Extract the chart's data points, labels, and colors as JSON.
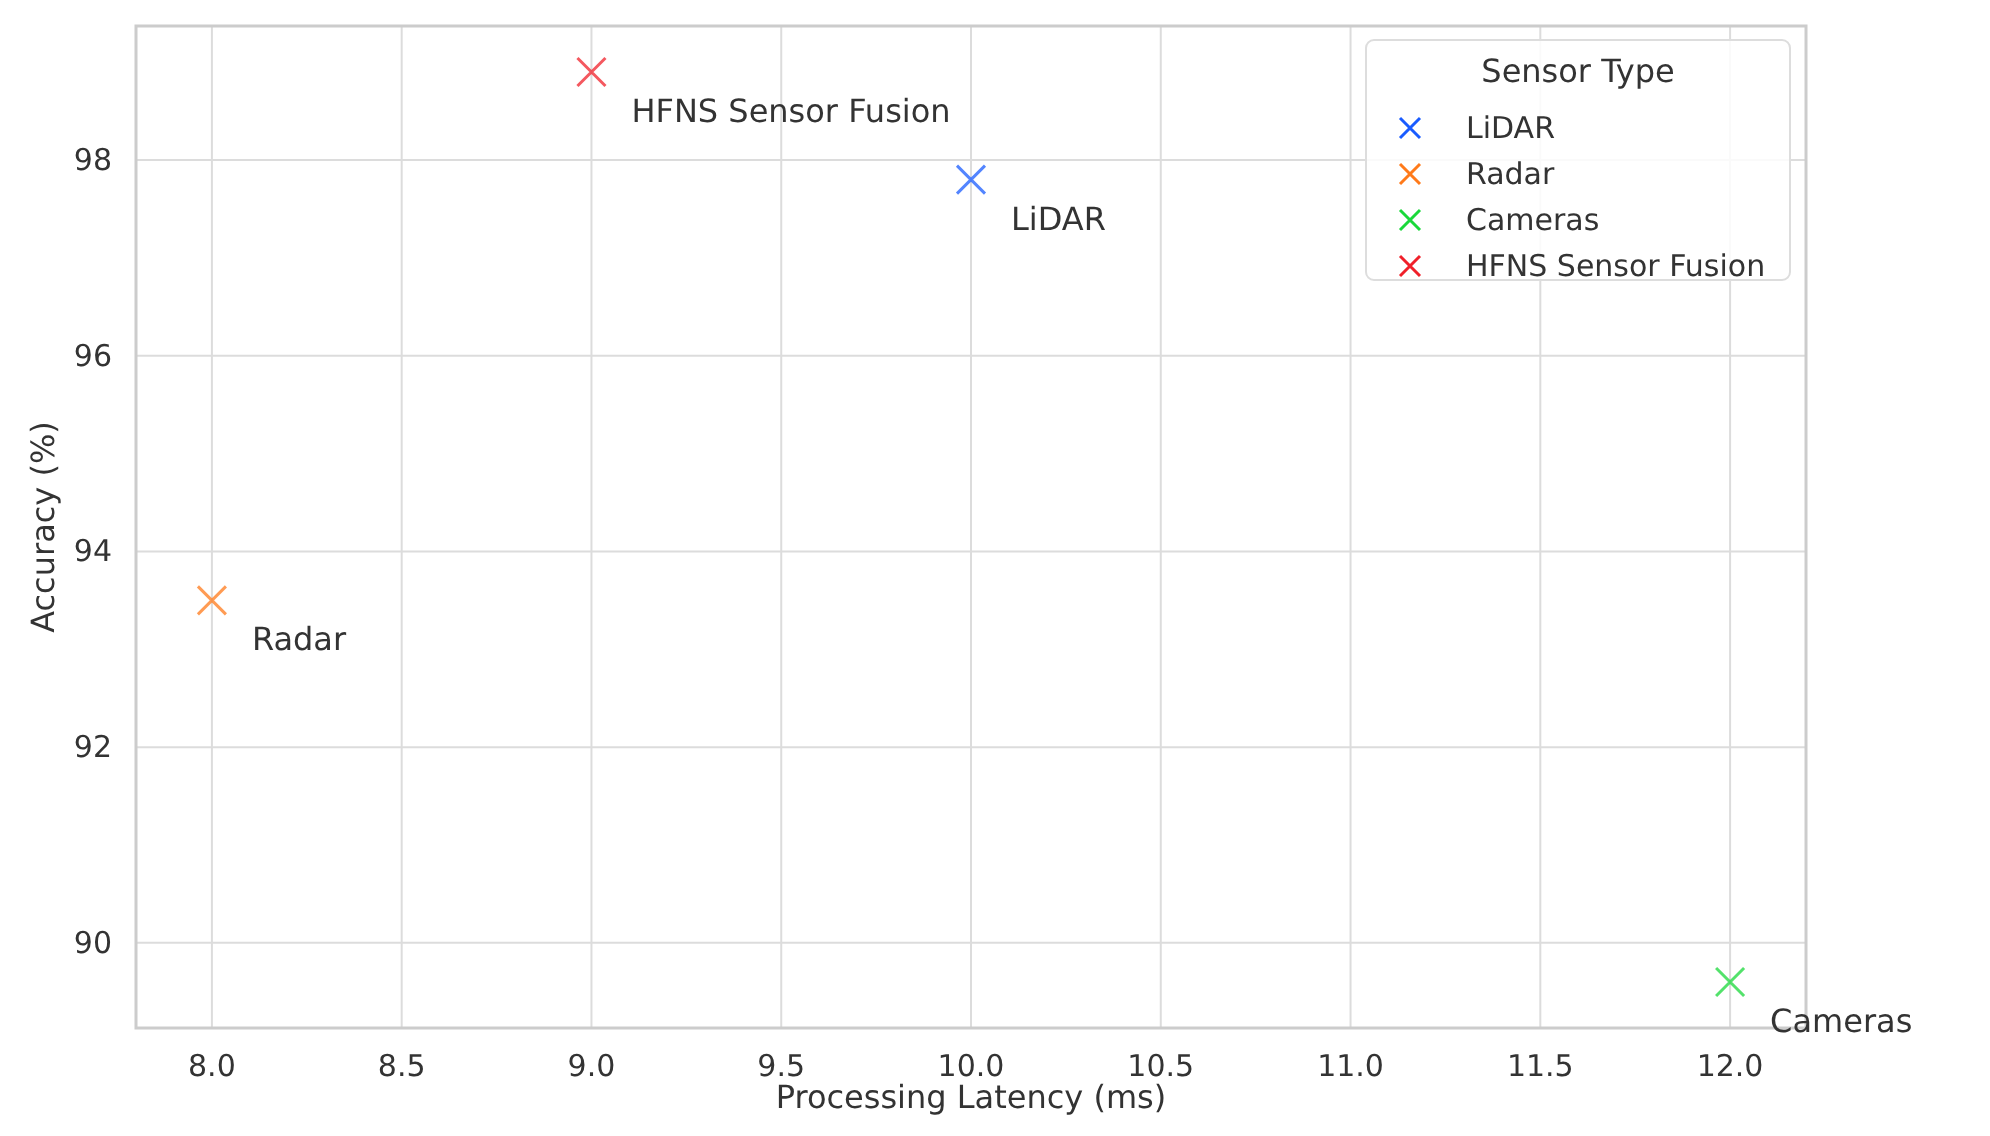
{
  "chart_data": {
    "type": "scatter",
    "xlabel": "Processing Latency (ms)",
    "ylabel": "Accuracy (%)",
    "legend_title": "Sensor Type",
    "legend": "top right",
    "grid": true,
    "marker": "cross",
    "xlim": [
      7.8,
      12.2
    ],
    "xticks": [
      {
        "value": 8,
        "label": "8.0"
      },
      {
        "value": 8.5,
        "label": "8.5"
      },
      {
        "value": 9,
        "label": "9.0"
      },
      {
        "value": 9.5,
        "label": "9.5"
      },
      {
        "value": 10,
        "label": "10.0"
      },
      {
        "value": 10.5,
        "label": "10.5"
      },
      {
        "value": 11,
        "label": "11.0"
      },
      {
        "value": 11.5,
        "label": "11.5"
      },
      {
        "value": 12,
        "label": "12.0"
      }
    ],
    "ylim": [
      89.13,
      99.37
    ],
    "yticks": [
      90,
      92,
      94,
      96,
      98
    ],
    "series": [
      {
        "name": "LiDAR",
        "color": "#1a5cff",
        "x": [
          10.0
        ],
        "values": [
          97.8
        ]
      },
      {
        "name": "Radar",
        "color": "#ff7a1a",
        "x": [
          8.0
        ],
        "values": [
          93.5
        ]
      },
      {
        "name": "Cameras",
        "color": "#1ad83a",
        "x": [
          12.0
        ],
        "values": [
          89.6
        ]
      },
      {
        "name": "HFNS Sensor Fusion",
        "color": "#f0202a",
        "x": [
          9.0
        ],
        "values": [
          98.9
        ]
      }
    ]
  }
}
